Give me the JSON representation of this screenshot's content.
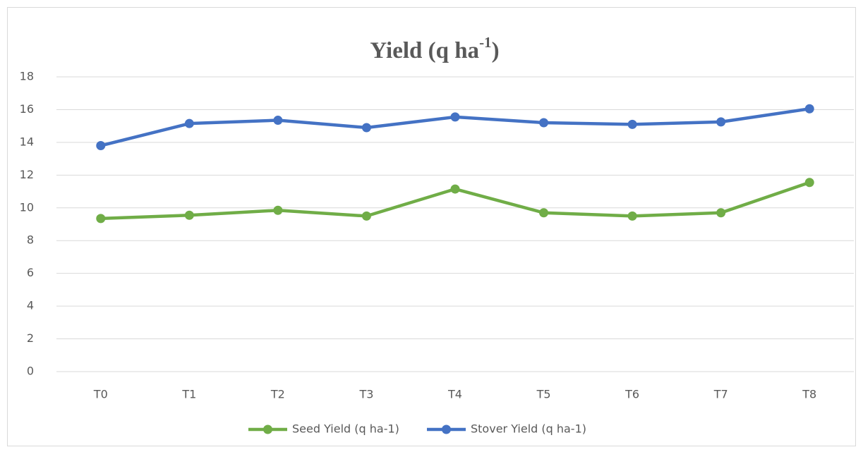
{
  "chart_data": {
    "type": "line",
    "title": [
      "Yield (q ha",
      "-1",
      ")"
    ],
    "categories": [
      "T0",
      "T1",
      "T2",
      "T3",
      "T4",
      "T5",
      "T6",
      "T7",
      "T8"
    ],
    "series": [
      {
        "name": "Seed Yield (q ha-1)",
        "color": "#70ad47",
        "values": [
          9.35,
          9.55,
          9.85,
          9.5,
          11.15,
          9.7,
          9.5,
          9.7,
          11.55
        ]
      },
      {
        "name": "Stover Yield (q ha-1)",
        "color": "#4472c4",
        "values": [
          13.8,
          15.15,
          15.35,
          14.9,
          15.55,
          15.2,
          15.1,
          15.25,
          16.05
        ]
      }
    ],
    "ylim": [
      0,
      18
    ],
    "yticks": [
      0,
      2,
      4,
      6,
      8,
      10,
      12,
      14,
      16,
      18
    ],
    "grid": true,
    "legend": "bottom"
  }
}
